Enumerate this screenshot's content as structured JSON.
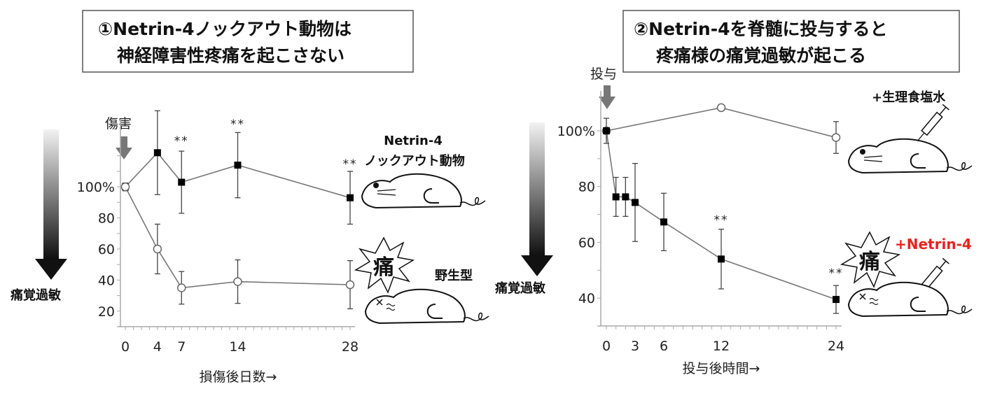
{
  "chart_data": [
    {
      "type": "line",
      "title": "①Netrin-4ノックアウト動物は\n神経障害性疼痛を起こさない",
      "title_lines": [
        "①Netrin-4ノックアウト動物は",
        "神経障害性疼痛を起こさない"
      ],
      "xlabel": "損傷後日数→",
      "ylabel": "痛覚過敏",
      "event_label": "傷害",
      "xlim": [
        0,
        28
      ],
      "ylim": [
        10,
        130
      ],
      "xticks": [
        0,
        4,
        7,
        14,
        28
      ],
      "yticks": [
        20,
        40,
        60,
        80,
        100
      ],
      "ytick_labels": [
        "20",
        "40",
        "60",
        "80",
        "100%"
      ],
      "series": [
        {
          "name": "Netrin-4 ノックアウト動物",
          "marker": "filled-square",
          "x": [
            0,
            4,
            7,
            14,
            28
          ],
          "y": [
            100,
            122,
            103,
            114,
            93
          ],
          "err": [
            2.5,
            27,
            20,
            21,
            17
          ]
        },
        {
          "name": "野生型",
          "marker": "open-circle",
          "x": [
            0,
            4,
            7,
            14,
            28
          ],
          "y": [
            100,
            60,
            35,
            39,
            37
          ],
          "err": [
            2.5,
            16,
            10.5,
            14,
            15.5
          ]
        }
      ],
      "annotations": [
        {
          "x": 7,
          "text": "**"
        },
        {
          "x": 14,
          "text": "**"
        },
        {
          "x": 28,
          "text": "**"
        }
      ],
      "legend_labels": {
        "knockout_line1": "Netrin-4",
        "knockout_line2": "ノックアウト動物",
        "wildtype": "野生型",
        "pain": "痛"
      }
    },
    {
      "type": "line",
      "title": "②Netrin-4を脊髄に投与すると\n疼痛様の痛覚過敏が起こる",
      "title_lines": [
        "②Netrin-4を脊髄に投与すると",
        "疼痛様の痛覚過敏が起こる"
      ],
      "xlabel": "投与後時間→",
      "ylabel": "痛覚過敏",
      "event_label": "投与",
      "xlim": [
        0,
        24
      ],
      "ylim": [
        30,
        110
      ],
      "xticks": [
        0,
        3,
        6,
        12,
        24
      ],
      "yticks": [
        40,
        60,
        80,
        100
      ],
      "ytick_labels": [
        "40",
        "60",
        "80",
        "100%"
      ],
      "series": [
        {
          "name": "+生理食塩水",
          "marker": "open-circle",
          "x": [
            0,
            12,
            24
          ],
          "y": [
            100,
            108.3,
            97.6
          ],
          "err": [
            0,
            0,
            5.7
          ]
        },
        {
          "name": "+Netrin-4",
          "marker": "filled-square",
          "x": [
            0,
            1,
            2,
            3,
            6,
            12,
            24
          ],
          "y": [
            100,
            76.3,
            76.3,
            74.3,
            67.3,
            54,
            39.5
          ],
          "err": [
            4.5,
            7,
            7,
            14,
            10.3,
            10.7,
            5
          ]
        }
      ],
      "annotations": [
        {
          "x": 12,
          "text": "**"
        },
        {
          "x": 24,
          "text": "**"
        }
      ],
      "legend_labels": {
        "saline": "+生理食塩水",
        "netrin": "+Netrin-4",
        "pain": "痛"
      },
      "colors": {
        "netrin_label": "#e8231f"
      }
    }
  ]
}
